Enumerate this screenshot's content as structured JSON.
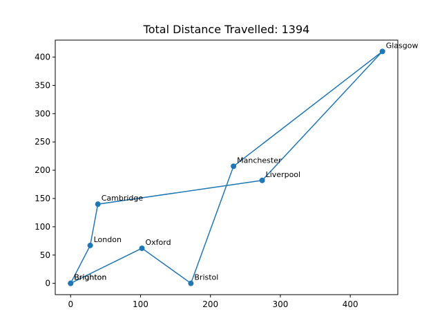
{
  "chart_data": {
    "type": "line",
    "title": "Total Distance Travelled: 1394",
    "xlabel": "",
    "ylabel": "",
    "xlim": [
      -22,
      468
    ],
    "ylim": [
      -20,
      430
    ],
    "xticks": [
      0,
      100,
      200,
      300,
      400
    ],
    "yticks": [
      0,
      50,
      100,
      150,
      200,
      250,
      300,
      350,
      400
    ],
    "grid": false,
    "color": "#1f77b4",
    "points": [
      {
        "label": "Brighton",
        "x": 0,
        "y": 0
      },
      {
        "label": "London",
        "x": 28,
        "y": 67
      },
      {
        "label": "Cambridge",
        "x": 39,
        "y": 140
      },
      {
        "label": "Liverpool",
        "x": 274,
        "y": 182
      },
      {
        "label": "Glasgow",
        "x": 446,
        "y": 410
      },
      {
        "label": "Manchester",
        "x": 233,
        "y": 207
      },
      {
        "label": "Bristol",
        "x": 172,
        "y": 0
      },
      {
        "label": "Oxford",
        "x": 102,
        "y": 62
      },
      {
        "label": "Brighton",
        "x": 0,
        "y": 0
      }
    ]
  }
}
